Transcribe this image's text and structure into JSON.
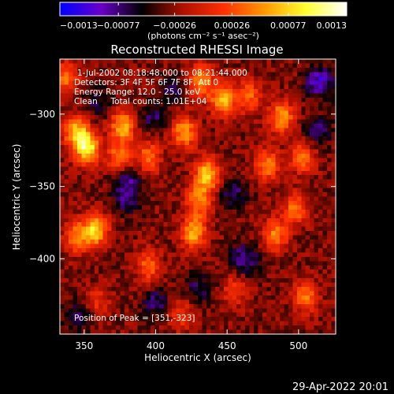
{
  "chart_data": {
    "type": "heatmap",
    "title": "Reconstructed RHESSI Image",
    "xlabel": "Heliocentric X (arcsec)",
    "ylabel": "Heliocentric Y (arcsec)",
    "xlim": [
      333,
      526
    ],
    "ylim": [
      -452,
      -262
    ],
    "x_ticks": [
      350,
      400,
      450,
      500
    ],
    "x_tick_labels": [
      "350",
      "400",
      "450",
      "500"
    ],
    "y_ticks": [
      -300,
      -350,
      -400
    ],
    "y_tick_labels": [
      "−300",
      "−350",
      "−400"
    ],
    "colorbar": {
      "range": [
        -0.0013,
        0.0013
      ],
      "ticks": [
        -0.0013,
        -0.00077,
        -0.00026,
        0.00026,
        0.00077,
        0.0013
      ],
      "tick_labels": [
        "−0.0013",
        "−0.00077",
        "−0.00026",
        "0.00026",
        "0.00077",
        "0.0013"
      ],
      "units_label": "(photons cm⁻² s⁻¹ asec⁻²)",
      "colormap_stops": [
        "#0000ff",
        "#6a00c8",
        "#000000",
        "#b01000",
        "#ff3000",
        "#ff9a00",
        "#ffff30",
        "#ffffff"
      ]
    },
    "annotations": [
      "1-Jul-2002 08:18:48.000 to 08:21:44.000",
      "Detectors: 3F 4F 5F 6F 7F 8F, Att 0",
      "Energy Range: 12.0 - 25.0 keV",
      "Clean     Total counts: 1.01E+04"
    ],
    "peak_label": "Position of Peak = [351,-323]",
    "peak_position": [
      351,
      -323
    ],
    "grid": false,
    "intensity_features": [
      {
        "x": 352,
        "y": -323,
        "value": 1.0
      },
      {
        "x": 344,
        "y": -312,
        "value": 0.75
      },
      {
        "x": 358,
        "y": -380,
        "value": 0.85
      },
      {
        "x": 345,
        "y": -385,
        "value": 0.6
      },
      {
        "x": 337,
        "y": -275,
        "value": 0.55
      },
      {
        "x": 377,
        "y": -308,
        "value": 0.75
      },
      {
        "x": 375,
        "y": -330,
        "value": 0.6
      },
      {
        "x": 420,
        "y": -312,
        "value": 0.7
      },
      {
        "x": 395,
        "y": -330,
        "value": 0.55
      },
      {
        "x": 432,
        "y": -277,
        "value": 0.65
      },
      {
        "x": 447,
        "y": -290,
        "value": 0.75
      },
      {
        "x": 436,
        "y": -342,
        "value": 0.85
      },
      {
        "x": 430,
        "y": -360,
        "value": 0.6
      },
      {
        "x": 427,
        "y": -382,
        "value": 0.75
      },
      {
        "x": 465,
        "y": -288,
        "value": 0.55
      },
      {
        "x": 478,
        "y": -335,
        "value": 0.6
      },
      {
        "x": 488,
        "y": -302,
        "value": 0.7
      },
      {
        "x": 484,
        "y": -383,
        "value": 0.6
      },
      {
        "x": 498,
        "y": -365,
        "value": 0.55
      },
      {
        "x": 503,
        "y": -330,
        "value": 0.55
      },
      {
        "x": 505,
        "y": -426,
        "value": 0.55
      },
      {
        "x": 395,
        "y": -405,
        "value": 0.5
      },
      {
        "x": 455,
        "y": -422,
        "value": 0.35
      },
      {
        "x": 360,
        "y": -430,
        "value": 0.3
      },
      {
        "x": 418,
        "y": -438,
        "value": 0.35
      },
      {
        "x": 462,
        "y": -400,
        "value": -0.45
      },
      {
        "x": 400,
        "y": -430,
        "value": -0.35
      },
      {
        "x": 380,
        "y": -360,
        "value": -0.3
      },
      {
        "x": 360,
        "y": -292,
        "value": -0.25
      },
      {
        "x": 412,
        "y": -283,
        "value": -0.25
      },
      {
        "x": 515,
        "y": -278,
        "value": -0.55
      },
      {
        "x": 455,
        "y": -355,
        "value": -0.35
      },
      {
        "x": 345,
        "y": -440,
        "value": -0.3
      },
      {
        "x": 513,
        "y": -312,
        "value": -0.35
      },
      {
        "x": 430,
        "y": -420,
        "value": -0.3
      },
      {
        "x": 380,
        "y": -345,
        "value": -0.4
      },
      {
        "x": 398,
        "y": -302,
        "value": -0.3
      }
    ]
  },
  "footer": {
    "timestamp": "29-Apr-2022 20:01"
  }
}
